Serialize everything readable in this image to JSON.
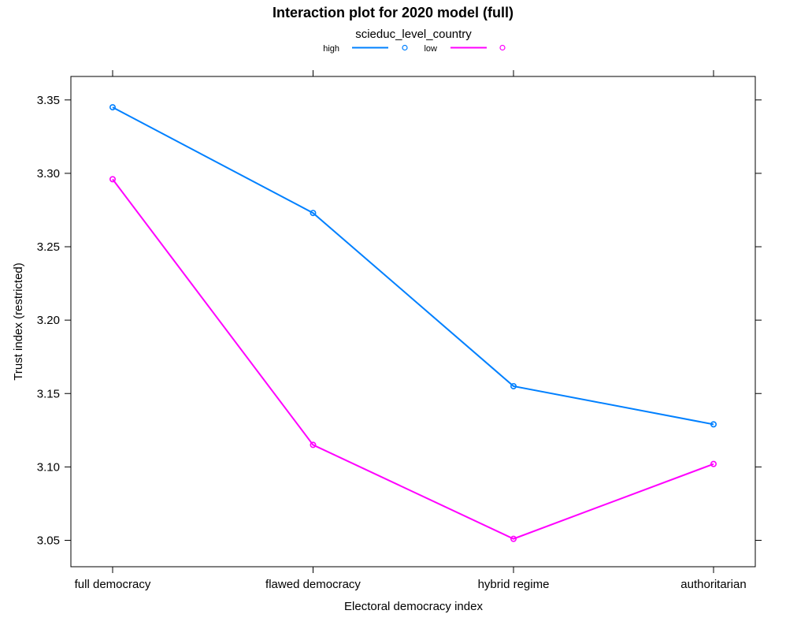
{
  "chart_data": {
    "type": "line",
    "title": "Interaction plot for 2020 model (full)",
    "xlabel": "Electoral democracy index",
    "ylabel": "Trust index (restricted)",
    "categories": [
      "full democracy",
      "flawed democracy",
      "hybrid regime",
      "authoritarian"
    ],
    "ylim": [
      3.032,
      3.366
    ],
    "yticks": [
      "3.05",
      "3.10",
      "3.15",
      "3.20",
      "3.25",
      "3.30",
      "3.35"
    ],
    "legend_title": "scieduc_level_country",
    "legend_position": "top",
    "grid": false,
    "series": [
      {
        "name": "high",
        "color": "#0080ff",
        "values": [
          3.345,
          3.273,
          3.155,
          3.129
        ]
      },
      {
        "name": "low",
        "color": "#ff00ff",
        "values": [
          3.296,
          3.115,
          3.051,
          3.102
        ]
      }
    ]
  }
}
